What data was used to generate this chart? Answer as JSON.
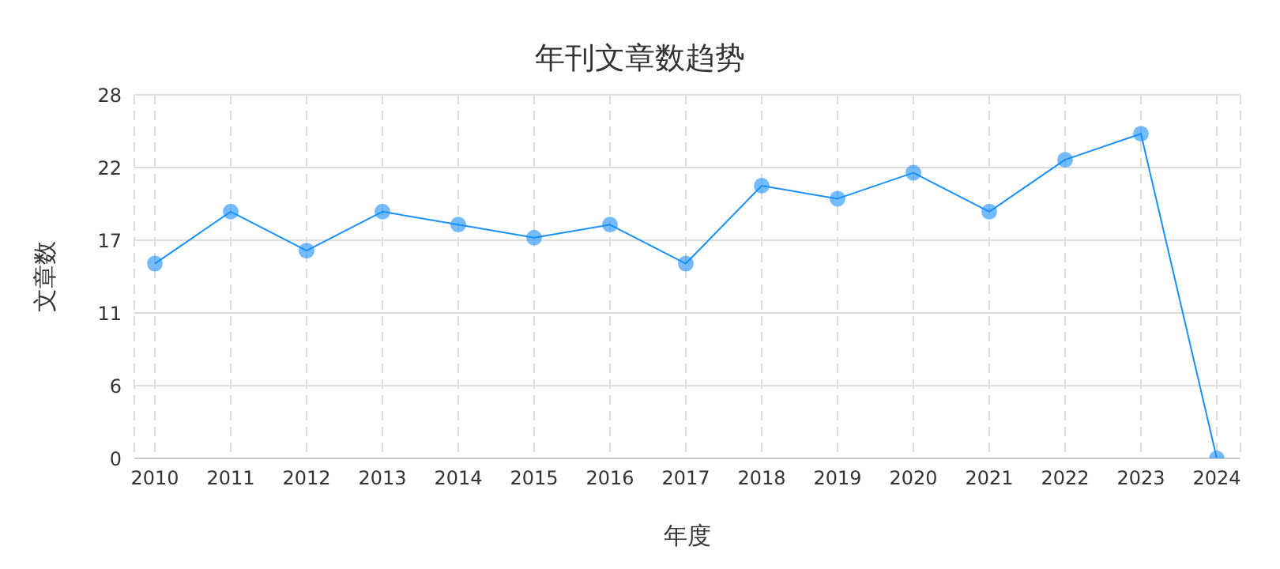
{
  "chart_data": {
    "type": "line",
    "title": "年刊文章数趋势",
    "xlabel": "年度",
    "ylabel": "文章数",
    "categories": [
      "2010",
      "2011",
      "2012",
      "2013",
      "2014",
      "2015",
      "2016",
      "2017",
      "2018",
      "2019",
      "2020",
      "2021",
      "2022",
      "2023",
      "2024"
    ],
    "series": [
      {
        "color": "#1890ff",
        "values": [
          15,
          19,
          16,
          19,
          18,
          17,
          18,
          15,
          21,
          20,
          22,
          19,
          23,
          25,
          0
        ]
      }
    ],
    "ylim": [
      0,
      28
    ],
    "yticks": [
      0,
      {
        "value": 5.6,
        "label": "6"
      },
      {
        "value": 11.2,
        "label": "11"
      },
      {
        "value": 16.8,
        "label": "17"
      },
      {
        "value": 22.4,
        "label": "22"
      },
      28
    ],
    "grid": true,
    "marker": "circle",
    "line_style": "solid",
    "legend": false
  }
}
